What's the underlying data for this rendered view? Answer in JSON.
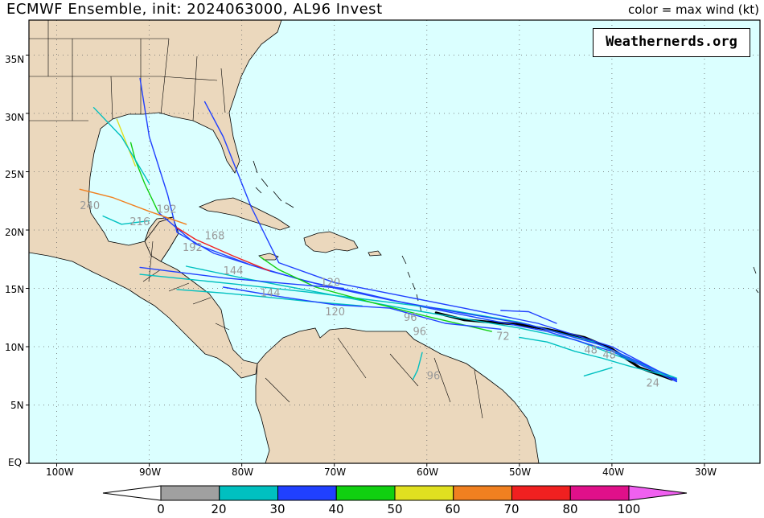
{
  "title": "ECMWF Ensemble, init: 2024063000, AL96 Invest",
  "subtitle": "color = max wind (kt)",
  "brand": "Weathernerds.org",
  "colors": {
    "ocean": "#dbffff",
    "land": "#ebd8bd",
    "border": "#000000",
    "grid": "#666666"
  },
  "axes": {
    "lat_labels": [
      "35N",
      "30N",
      "25N",
      "20N",
      "15N",
      "10N",
      "5N",
      "EQ"
    ],
    "lon_labels": [
      "100W",
      "90W",
      "80W",
      "70W",
      "60W",
      "50W",
      "40W",
      "30W"
    ]
  },
  "colorbar": {
    "labels": [
      "0",
      "20",
      "30",
      "40",
      "50",
      "60",
      "70",
      "80",
      "100"
    ],
    "colors": [
      "#a0a0a0",
      "#00c0c0",
      "#2040ff",
      "#10d010",
      "#e0e020",
      "#f08020",
      "#f02020",
      "#e0108a"
    ],
    "low_color": "#ffffff",
    "high_color": "#f060f0"
  },
  "hour_labels": [
    {
      "text": "240",
      "lon": -97.5,
      "lat": 21.8
    },
    {
      "text": "216",
      "lon": -92.1,
      "lat": 20.4
    },
    {
      "text": "192",
      "lon": -89.2,
      "lat": 21.5
    },
    {
      "text": "192",
      "lon": -86.4,
      "lat": 18.2
    },
    {
      "text": "168",
      "lon": -84.0,
      "lat": 19.2
    },
    {
      "text": "144",
      "lon": -82.0,
      "lat": 16.2
    },
    {
      "text": "144",
      "lon": -78.0,
      "lat": 14.3
    },
    {
      "text": "120",
      "lon": -71.5,
      "lat": 15.2
    },
    {
      "text": "120",
      "lon": -71.0,
      "lat": 12.7
    },
    {
      "text": "96",
      "lon": -62.5,
      "lat": 12.2
    },
    {
      "text": "96",
      "lon": -61.5,
      "lat": 11.0
    },
    {
      "text": "96",
      "lon": -60.0,
      "lat": 7.2
    },
    {
      "text": "72",
      "lon": -52.5,
      "lat": 10.6
    },
    {
      "text": "48",
      "lon": -43.0,
      "lat": 9.4
    },
    {
      "text": "48",
      "lon": -41.0,
      "lat": 9.0
    },
    {
      "text": "24",
      "lon": -36.3,
      "lat": 6.6
    }
  ],
  "chart_data": {
    "type": "line",
    "xlim": [
      -103,
      -24
    ],
    "ylim": [
      0,
      38
    ],
    "grid": true,
    "series": [
      {
        "color": "#000000",
        "points": [
          [
            -33.5,
            7.2
          ],
          [
            -37,
            8.2
          ],
          [
            -40,
            9.8
          ],
          [
            -43,
            10.8
          ],
          [
            -47,
            11.5
          ],
          [
            -50,
            11.9
          ],
          [
            -53,
            12.1
          ],
          [
            -56,
            12.3
          ],
          [
            -59,
            12.9
          ]
        ]
      },
      {
        "color": "#00c0c0",
        "points": [
          [
            -33,
            7.3
          ],
          [
            -38,
            8.8
          ],
          [
            -44,
            10.6
          ],
          [
            -50,
            11.6
          ],
          [
            -56,
            12.4
          ],
          [
            -62,
            13.2
          ],
          [
            -68,
            14.1
          ],
          [
            -74,
            15.0
          ],
          [
            -80,
            15.9
          ],
          [
            -86,
            16.9
          ]
        ]
      },
      {
        "color": "#2040ff",
        "points": [
          [
            -33,
            7.0
          ],
          [
            -40,
            9.6
          ],
          [
            -47,
            11.3
          ],
          [
            -54,
            12.4
          ],
          [
            -61,
            13.5
          ],
          [
            -67,
            14.6
          ],
          [
            -73,
            15.6
          ],
          [
            -79,
            17.0
          ],
          [
            -85,
            18.8
          ],
          [
            -89,
            21.5
          ]
        ]
      },
      {
        "color": "#2040ff",
        "points": [
          [
            -33,
            7.1
          ],
          [
            -40,
            10.0
          ],
          [
            -48,
            12.0
          ],
          [
            -56,
            13.3
          ],
          [
            -63,
            14.4
          ],
          [
            -70,
            15.5
          ],
          [
            -76,
            17.2
          ],
          [
            -79,
            22
          ],
          [
            -82,
            28
          ],
          [
            -84,
            31
          ]
        ]
      },
      {
        "color": "#00c0c0",
        "points": [
          [
            -34,
            7.5
          ],
          [
            -42,
            10.4
          ],
          [
            -50,
            12.1
          ],
          [
            -58,
            13.2
          ],
          [
            -66,
            14.0
          ],
          [
            -73,
            14.7
          ],
          [
            -80,
            15.3
          ],
          [
            -86,
            15.8
          ],
          [
            -91,
            16.2
          ]
        ]
      },
      {
        "color": "#2040ff",
        "points": [
          [
            -33,
            7.2
          ],
          [
            -41,
            10.1
          ],
          [
            -49,
            11.9
          ],
          [
            -57,
            13.0
          ],
          [
            -64,
            14.0
          ],
          [
            -71,
            15.2
          ],
          [
            -77,
            16.5
          ],
          [
            -83,
            18.0
          ],
          [
            -87,
            19.8
          ],
          [
            -88,
            23
          ],
          [
            -90,
            28
          ],
          [
            -91,
            33
          ]
        ]
      },
      {
        "color": "#10d010",
        "points": [
          [
            -53,
            11.3
          ],
          [
            -60,
            12.6
          ],
          [
            -66,
            13.8
          ],
          [
            -72,
            15.1
          ],
          [
            -76,
            16.6
          ],
          [
            -78,
            17.7
          ]
        ]
      },
      {
        "color": "#f08020",
        "points": [
          [
            -86,
            20.5
          ],
          [
            -90,
            21.6
          ],
          [
            -94,
            22.8
          ],
          [
            -97.5,
            23.5
          ]
        ]
      },
      {
        "color": "#f02020",
        "points": [
          [
            -77,
            16.5
          ],
          [
            -81,
            17.8
          ],
          [
            -85,
            19.2
          ],
          [
            -87,
            20.2
          ]
        ]
      },
      {
        "color": "#e0e020",
        "points": [
          [
            -91.5,
            25.5
          ],
          [
            -92.5,
            27.5
          ],
          [
            -93.5,
            29.5
          ]
        ]
      },
      {
        "color": "#10d010",
        "points": [
          [
            -89,
            21.5
          ],
          [
            -90.5,
            24
          ],
          [
            -91.5,
            26
          ],
          [
            -92,
            27.5
          ]
        ]
      },
      {
        "color": "#00c0c0",
        "points": [
          [
            -90,
            24
          ],
          [
            -93,
            28
          ],
          [
            -96,
            30.5
          ]
        ]
      },
      {
        "color": "#2040ff",
        "points": [
          [
            -69,
            15.0
          ],
          [
            -75,
            15.4
          ],
          [
            -82,
            15.9
          ],
          [
            -88,
            16.5
          ],
          [
            -91,
            16.8
          ]
        ]
      },
      {
        "color": "#00c0c0",
        "points": [
          [
            -67,
            13.5
          ],
          [
            -73,
            13.9
          ],
          [
            -78,
            14.3
          ],
          [
            -82,
            14.6
          ],
          [
            -87,
            14.9
          ]
        ]
      },
      {
        "color": "#2040ff",
        "points": [
          [
            -52,
            11.5
          ],
          [
            -58,
            12.0
          ],
          [
            -64,
            13.3
          ],
          [
            -70,
            13.6
          ],
          [
            -76,
            14.3
          ],
          [
            -82,
            15.1
          ]
        ]
      },
      {
        "color": "#00c0c0",
        "points": [
          [
            -33.5,
            7.4
          ],
          [
            -38,
            8.3
          ],
          [
            -41,
            9.0
          ],
          [
            -44,
            9.6
          ],
          [
            -47,
            10.4
          ],
          [
            -50,
            10.8
          ]
        ]
      },
      {
        "color": "#00c0c0",
        "points": [
          [
            -90,
            20.8
          ],
          [
            -93,
            20.5
          ],
          [
            -95,
            21.2
          ]
        ]
      },
      {
        "color": "#00c0c0",
        "points": [
          [
            -60.5,
            9.5
          ],
          [
            -61,
            8.0
          ],
          [
            -61.5,
            7.2
          ]
        ]
      },
      {
        "color": "#2040ff",
        "points": [
          [
            -46,
            12.0
          ],
          [
            -49,
            13.0
          ],
          [
            -52,
            13.1
          ]
        ]
      },
      {
        "color": "#00c0c0",
        "points": [
          [
            -40,
            8.2
          ],
          [
            -43,
            7.5
          ]
        ]
      }
    ]
  }
}
